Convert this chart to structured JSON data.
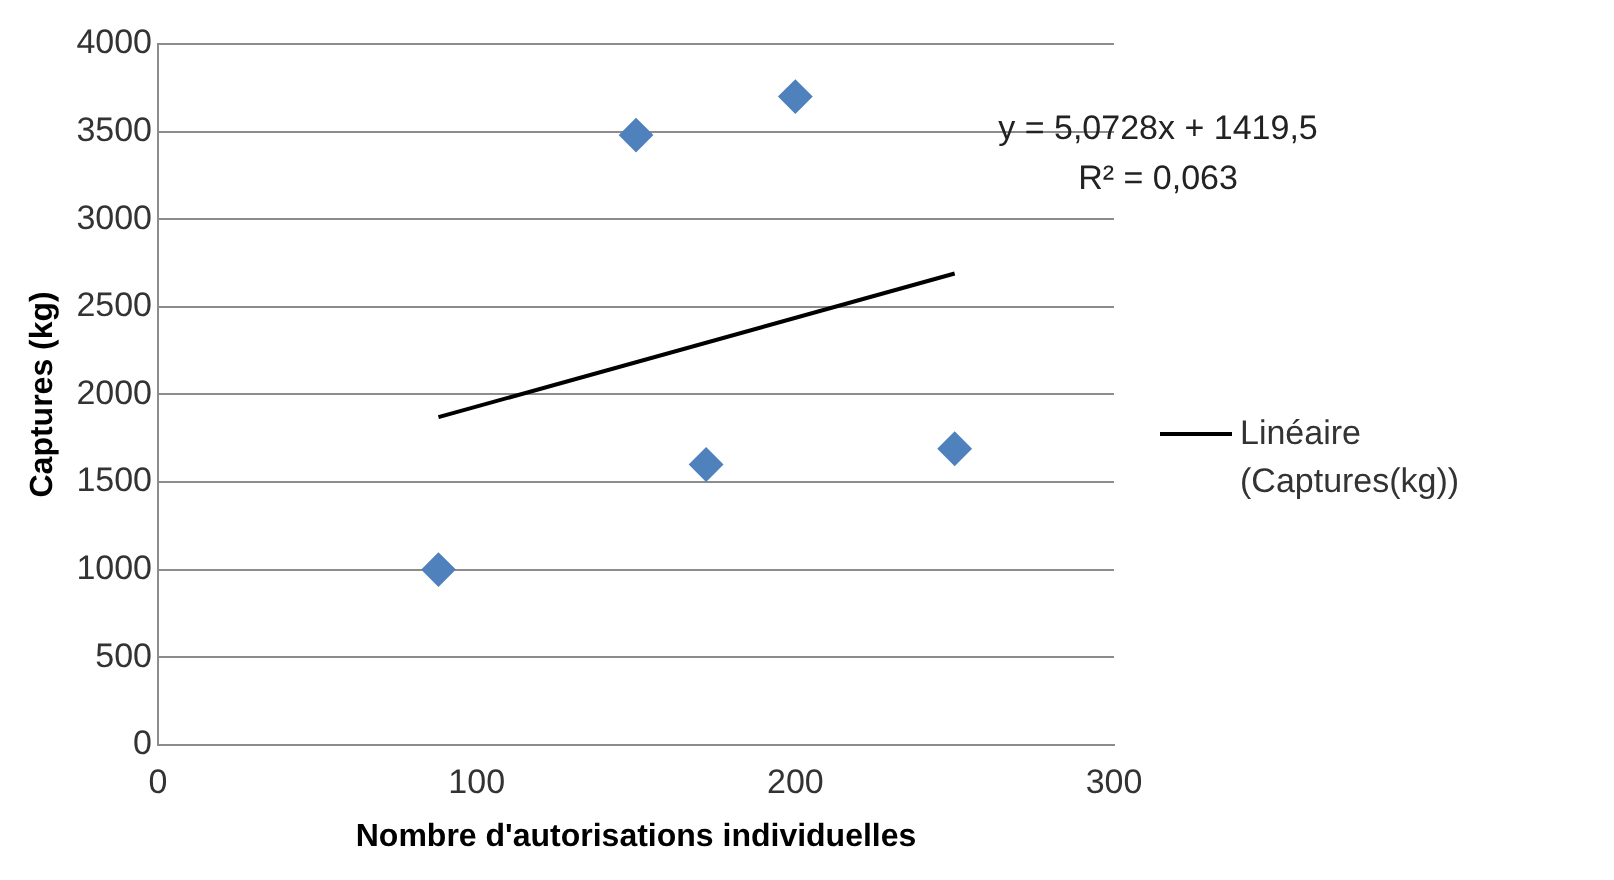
{
  "chart_data": {
    "type": "scatter",
    "xlabel": "Nombre d'autorisations individuelles",
    "ylabel": "Captures (kg)",
    "xlim": [
      0,
      300
    ],
    "xticks": [
      0,
      100,
      200,
      300
    ],
    "ylim": [
      0,
      4000
    ],
    "yticks": [
      0,
      500,
      1000,
      1500,
      2000,
      2500,
      3000,
      3500,
      4000
    ],
    "grid": "y",
    "legend": "right",
    "series": [
      {
        "type": "scatter",
        "color": "#4f81bd",
        "marker": "diamond",
        "x": [
          88,
          150,
          172,
          200,
          250
        ],
        "values": [
          1000,
          3480,
          1600,
          3700,
          1690
        ]
      },
      {
        "type": "line",
        "name": "Linéaire (Captures(kg))",
        "color": "#000000",
        "marker": "none",
        "line_style": "solid",
        "x": [
          88,
          250
        ],
        "values": [
          1870,
          2690
        ]
      }
    ],
    "annotations": [
      "y = 5,0728x + 1419,5",
      "R² = 0,063"
    ]
  }
}
